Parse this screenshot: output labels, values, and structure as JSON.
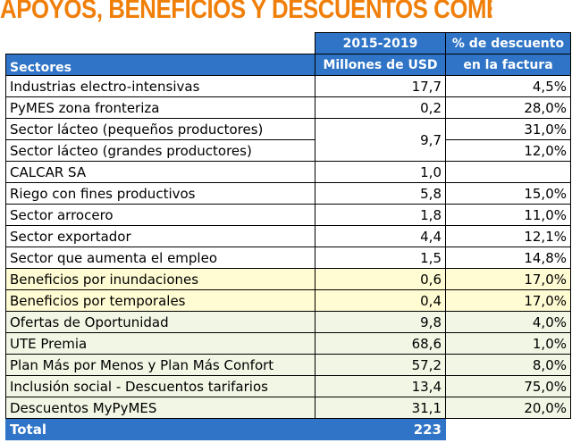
{
  "title": "APOYOS, BENEFICIOS Y DESCUENTOS COMERCIALES",
  "header": {
    "col1": "Sectores",
    "col2_line1": "2015-2019",
    "col2_line2": "Millones de USD",
    "col3_line1": "% de descuento",
    "col3_line2": "en la factura"
  },
  "rows": [
    {
      "sector": "Industrias electro-intensivas",
      "usd": "17,7",
      "pct": "4,5%"
    },
    {
      "sector": "PyMES zona fronteriza",
      "usd": "0,2",
      "pct": "28,0%"
    },
    {
      "sector": "Sector lácteo (pequeños productores)",
      "usd": "9,7",
      "pct": "31,0%"
    },
    {
      "sector": "Sector lácteo (grandes productores)",
      "pct": "12,0%"
    },
    {
      "sector": "CALCAR SA",
      "usd": "1,0",
      "pct": ""
    },
    {
      "sector": "Riego con fines productivos",
      "usd": "5,8",
      "pct": "15,0%"
    },
    {
      "sector": "Sector arrocero",
      "usd": "1,8",
      "pct": "11,0%"
    },
    {
      "sector": "Sector exportador",
      "usd": "4,4",
      "pct": "12,1%"
    },
    {
      "sector": "Sector que aumenta el empleo",
      "usd": "1,5",
      "pct": "14,8%"
    },
    {
      "sector": "Beneficios por inundaciones",
      "usd": "0,6",
      "pct": "17,0%"
    },
    {
      "sector": "Beneficios por temporales",
      "usd": "0,4",
      "pct": "17,0%"
    },
    {
      "sector": "Ofertas de Oportunidad",
      "usd": "9,8",
      "pct": "4,0%"
    },
    {
      "sector": "UTE Premia",
      "usd": "68,6",
      "pct": "1,0%"
    },
    {
      "sector": "Plan Más por Menos y Plan Más Confort",
      "usd": "57,2",
      "pct": "8,0%"
    },
    {
      "sector": "Inclusión social - Descuentos tarifarios",
      "usd": "13,4",
      "pct": "75,0%"
    },
    {
      "sector": "Descuentos MyPyMES",
      "usd": "31,1",
      "pct": "20,0%"
    }
  ],
  "total": {
    "label": "Total",
    "usd": "223"
  },
  "colors": {
    "title": "#f07f09",
    "header_bg": "#2f74c6",
    "highlight_yellow": "#fffbd2",
    "highlight_green": "#f2f6e4"
  }
}
